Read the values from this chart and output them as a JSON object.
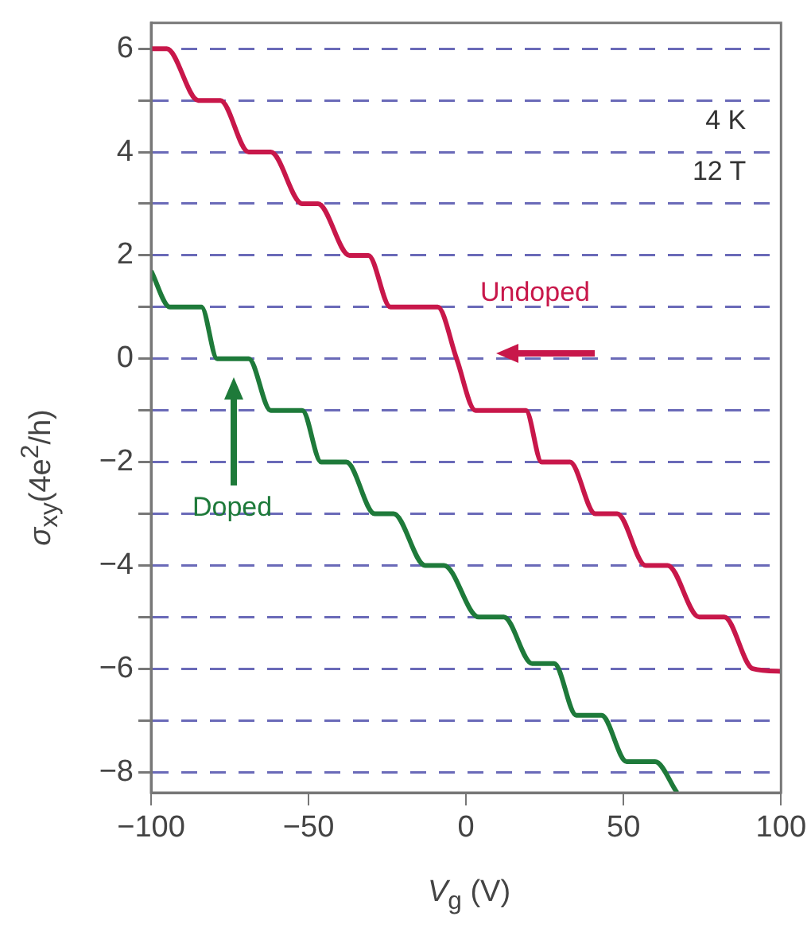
{
  "chart_data": {
    "type": "line",
    "xlabel": "V$_{g}$ (V)",
    "ylabel": "σ$_{xy}$(4e$^{2}$/h)",
    "xlim": [
      -100,
      100
    ],
    "xticks": [
      -100,
      -50,
      0,
      50,
      100
    ],
    "ylim": [
      -8.4,
      6.5
    ],
    "yticks": [
      {
        "value": -8,
        "label": "−8"
      },
      {
        "value": -7,
        "label": null
      },
      {
        "value": -6,
        "label": "−6"
      },
      {
        "value": -5,
        "label": null
      },
      {
        "value": -4,
        "label": "−4"
      },
      {
        "value": -3,
        "label": null
      },
      {
        "value": -2,
        "label": "−2"
      },
      {
        "value": -1,
        "label": null
      },
      0,
      {
        "value": 1,
        "label": null
      },
      2,
      {
        "value": 3,
        "label": null
      },
      4,
      {
        "value": 5,
        "label": null
      },
      6
    ],
    "grid": "y",
    "marker": "none",
    "line_style": "solid",
    "series": [
      {
        "color": "#c8174a",
        "x": [
          -100,
          -95,
          -85,
          -78,
          -69,
          -62,
          -52,
          -47,
          -37,
          -31,
          -24,
          -9,
          -3,
          3,
          19,
          24,
          33,
          41,
          48,
          57,
          64,
          74,
          82,
          91,
          100
        ],
        "values": [
          6,
          6,
          5,
          5,
          4,
          4,
          3,
          3,
          2,
          2,
          1,
          1,
          0,
          -1,
          -1,
          -2,
          -2,
          -3,
          -3,
          -4,
          -4,
          -5,
          -5,
          -6,
          -6.05
        ]
      },
      {
        "color": "#1e7a3a",
        "x": [
          -100,
          -94,
          -84,
          -79,
          -69,
          -62,
          -52,
          -46,
          -38,
          -29,
          -23,
          -13,
          -7,
          4,
          12,
          21,
          28,
          35,
          43,
          51,
          60,
          67
        ],
        "values": [
          1.7,
          1,
          1,
          0,
          0,
          -1,
          -1,
          -2,
          -2,
          -3,
          -3,
          -4,
          -4,
          -5,
          -5,
          -5.9,
          -5.9,
          -6.9,
          -6.9,
          -7.8,
          -7.8,
          -8.4
        ]
      }
    ],
    "annotations": [
      "Undoped",
      "Doped",
      "4 K",
      "12 T"
    ]
  }
}
